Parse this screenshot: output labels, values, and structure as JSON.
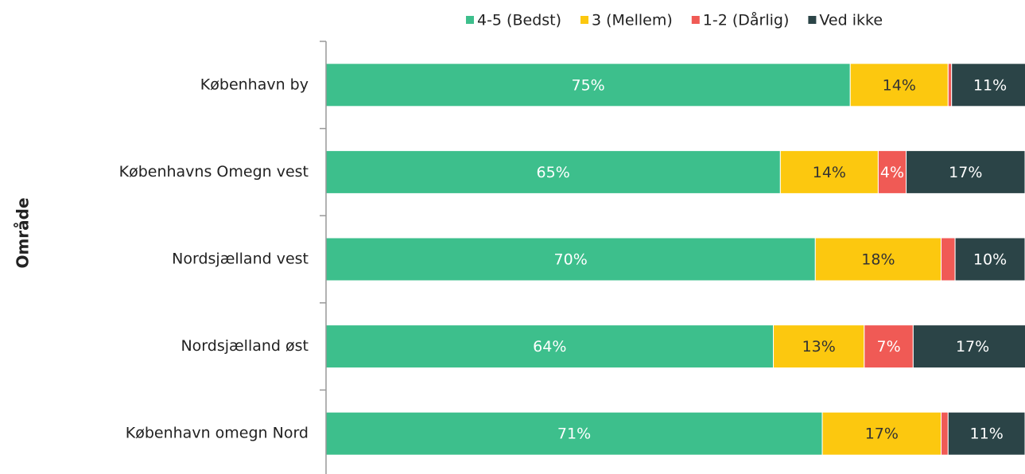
{
  "chart_data": {
    "type": "stacked-bar-horizontal",
    "y_label": "Område",
    "categories": [
      "København by",
      "Københavns Omegn vest",
      "Nordsjælland vest",
      "Nordsjælland øst",
      "København omegn Nord"
    ],
    "series": [
      {
        "name": "4-5 (Bedst)",
        "color": "#3dbf8c",
        "label_color": "#ffffff",
        "values": [
          75,
          65,
          70,
          64,
          71
        ],
        "value_labels": [
          "75%",
          "65%",
          "70%",
          "64%",
          "71%"
        ]
      },
      {
        "name": "3 (Mellem)",
        "color": "#fcc80f",
        "label_color": "#333333",
        "values": [
          14,
          14,
          18,
          13,
          17
        ],
        "value_labels": [
          "14%",
          "14%",
          "18%",
          "13%",
          "17%"
        ]
      },
      {
        "name": "1-2 (Dårlig)",
        "color": "#f05a55",
        "label_color": "#ffffff",
        "values": [
          0.5,
          4,
          2,
          7,
          1
        ],
        "value_labels": [
          null,
          "4%",
          null,
          "7%",
          null
        ]
      },
      {
        "name": "Ved ikke",
        "color": "#2b4447",
        "label_color": "#ffffff",
        "values": [
          11,
          17,
          10,
          17,
          11
        ],
        "value_labels": [
          "11%",
          "17%",
          "10%",
          "17%",
          "11%"
        ]
      }
    ],
    "xlim": [
      0,
      100
    ],
    "legend": "top"
  }
}
